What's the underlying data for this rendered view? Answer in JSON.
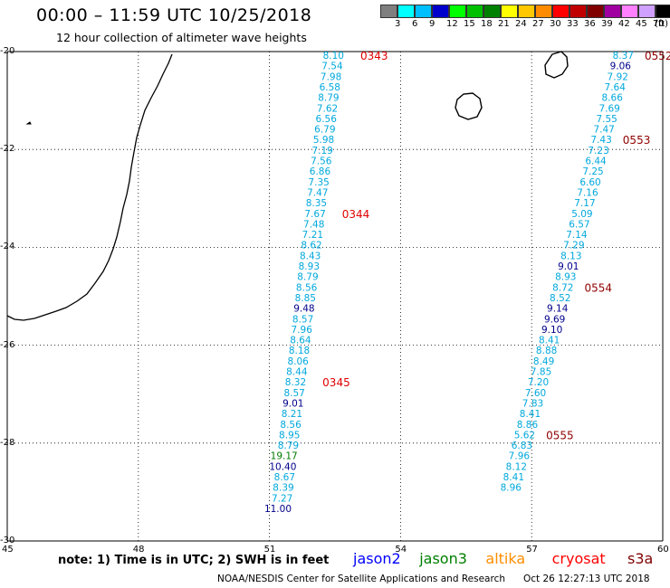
{
  "header": {
    "title": "00:00 – 11:59 UTC 10/25/2018",
    "subtitle": "12 hour collection of altimeter wave heights"
  },
  "color_scale": {
    "unit": "(ft)",
    "labels": [
      "3",
      "6",
      "9",
      "12",
      "15",
      "18",
      "21",
      "24",
      "27",
      "30",
      "33",
      "36",
      "39",
      "42",
      "45",
      "70"
    ],
    "colors": [
      "#7f7f7f",
      "#00ffff",
      "#00bfff",
      "#0000cd",
      "#00ff00",
      "#00c000",
      "#008000",
      "#ffff00",
      "#ffc800",
      "#ff8c00",
      "#ff0000",
      "#c00000",
      "#800000",
      "#a000a0",
      "#ff80ff",
      "#d0a0ff",
      "#000000"
    ]
  },
  "map": {
    "lat_labels": [
      "-20",
      "-22",
      "-24",
      "-26",
      "-28",
      "-30"
    ],
    "lon_labels": [
      "45",
      "48",
      "51",
      "54",
      "57",
      "60"
    ],
    "track_colors": {
      "cyan": "#00a8dc",
      "navy": "#00008b",
      "green": "#007a00",
      "red_pass": "#e00000",
      "dark_pass": "#900000"
    },
    "tracks": [
      {
        "values": [
          {
            "v": "8.10",
            "c": "cyan"
          },
          {
            "v": "7.54",
            "c": "cyan"
          },
          {
            "v": "7.98",
            "c": "cyan"
          },
          {
            "v": "6.58",
            "c": "cyan"
          },
          {
            "v": "8.79",
            "c": "cyan"
          },
          {
            "v": "7.62",
            "c": "cyan"
          },
          {
            "v": "6.56",
            "c": "cyan"
          },
          {
            "v": "6.79",
            "c": "cyan"
          },
          {
            "v": "5.98",
            "c": "cyan"
          },
          {
            "v": "7.19",
            "c": "cyan"
          },
          {
            "v": "7.56",
            "c": "cyan"
          },
          {
            "v": "6.86",
            "c": "cyan"
          },
          {
            "v": "7.35",
            "c": "cyan"
          },
          {
            "v": "7.47",
            "c": "cyan"
          },
          {
            "v": "8.35",
            "c": "cyan"
          },
          {
            "v": "7.67",
            "c": "cyan"
          },
          {
            "v": "7.48",
            "c": "cyan"
          },
          {
            "v": "7.21",
            "c": "cyan"
          },
          {
            "v": "8.62",
            "c": "cyan"
          },
          {
            "v": "8.43",
            "c": "cyan"
          },
          {
            "v": "8.93",
            "c": "cyan"
          },
          {
            "v": "8.79",
            "c": "cyan"
          },
          {
            "v": "8.56",
            "c": "cyan"
          },
          {
            "v": "8.85",
            "c": "cyan"
          },
          {
            "v": "9.48",
            "c": "navy"
          },
          {
            "v": "8.57",
            "c": "cyan"
          },
          {
            "v": "7.96",
            "c": "cyan"
          },
          {
            "v": "8.64",
            "c": "cyan"
          },
          {
            "v": "8.18",
            "c": "cyan"
          },
          {
            "v": "8.06",
            "c": "cyan"
          },
          {
            "v": "8.44",
            "c": "cyan"
          },
          {
            "v": "8.32",
            "c": "cyan"
          },
          {
            "v": "8.57",
            "c": "cyan"
          },
          {
            "v": "9.01",
            "c": "navy"
          },
          {
            "v": "8.21",
            "c": "cyan"
          },
          {
            "v": "8.56",
            "c": "cyan"
          },
          {
            "v": "8.95",
            "c": "cyan"
          },
          {
            "v": "8.79",
            "c": "cyan"
          },
          {
            "v": "19.17",
            "c": "green"
          },
          {
            "v": "10.40",
            "c": "navy"
          },
          {
            "v": "8.67",
            "c": "cyan"
          },
          {
            "v": "8.39",
            "c": "cyan"
          },
          {
            "v": "7.27",
            "c": "cyan"
          },
          {
            "v": "11.00",
            "c": "navy"
          }
        ],
        "times": [
          {
            "t": "0343",
            "c": "red_pass",
            "i": 0
          },
          {
            "t": "0344",
            "c": "red_pass",
            "i": 15
          },
          {
            "t": "0345",
            "c": "red_pass",
            "i": 31
          }
        ]
      },
      {
        "values": [
          {
            "v": "8.37",
            "c": "cyan"
          },
          {
            "v": "9.06",
            "c": "navy"
          },
          {
            "v": "7.92",
            "c": "cyan"
          },
          {
            "v": "7.64",
            "c": "cyan"
          },
          {
            "v": "8.66",
            "c": "cyan"
          },
          {
            "v": "7.69",
            "c": "cyan"
          },
          {
            "v": "7.55",
            "c": "cyan"
          },
          {
            "v": "7.47",
            "c": "cyan"
          },
          {
            "v": "7.43",
            "c": "cyan"
          },
          {
            "v": "7.23",
            "c": "cyan"
          },
          {
            "v": "6.44",
            "c": "cyan"
          },
          {
            "v": "7.25",
            "c": "cyan"
          },
          {
            "v": "6.60",
            "c": "cyan"
          },
          {
            "v": "7.16",
            "c": "cyan"
          },
          {
            "v": "7.17",
            "c": "cyan"
          },
          {
            "v": "5.09",
            "c": "cyan"
          },
          {
            "v": "6.57",
            "c": "cyan"
          },
          {
            "v": "7.14",
            "c": "cyan"
          },
          {
            "v": "7.29",
            "c": "cyan"
          },
          {
            "v": "8.13",
            "c": "cyan"
          },
          {
            "v": "9.01",
            "c": "navy"
          },
          {
            "v": "8.93",
            "c": "cyan"
          },
          {
            "v": "8.72",
            "c": "cyan"
          },
          {
            "v": "8.52",
            "c": "cyan"
          },
          {
            "v": "9.14",
            "c": "navy"
          },
          {
            "v": "9.69",
            "c": "navy"
          },
          {
            "v": "9.10",
            "c": "navy"
          },
          {
            "v": "8.41",
            "c": "cyan"
          },
          {
            "v": "8.88",
            "c": "cyan"
          },
          {
            "v": "8.49",
            "c": "cyan"
          },
          {
            "v": "7.85",
            "c": "cyan"
          },
          {
            "v": "7.20",
            "c": "cyan"
          },
          {
            "v": "7.60",
            "c": "cyan"
          },
          {
            "v": "7.83",
            "c": "cyan"
          },
          {
            "v": "8.41",
            "c": "cyan"
          },
          {
            "v": "8.86",
            "c": "cyan"
          },
          {
            "v": "5.62",
            "c": "cyan"
          },
          {
            "v": "6.83",
            "c": "cyan"
          },
          {
            "v": "7.96",
            "c": "cyan"
          },
          {
            "v": "8.12",
            "c": "cyan"
          },
          {
            "v": "8.41",
            "c": "cyan"
          },
          {
            "v": "8.96",
            "c": "cyan"
          }
        ],
        "times": [
          {
            "t": "0552",
            "c": "dark_pass",
            "i": 0
          },
          {
            "t": "0553",
            "c": "dark_pass",
            "i": 8
          },
          {
            "t": "0554",
            "c": "dark_pass",
            "i": 22
          },
          {
            "t": "0555",
            "c": "dark_pass",
            "i": 36
          }
        ]
      }
    ]
  },
  "note": "note:  1) Time is in UTC;  2) SWH is in feet",
  "legend": [
    {
      "name": "jason2",
      "color": "#0000ff"
    },
    {
      "name": "jason3",
      "color": "#008000"
    },
    {
      "name": "altika",
      "color": "#ff8c00"
    },
    {
      "name": "cryosat",
      "color": "#ff0000"
    },
    {
      "name": "s3a",
      "color": "#800000"
    }
  ],
  "footer": {
    "credit": "NOAA/NESDIS Center for Satellite Applications and Research",
    "timestamp": "Oct 26 12:27:13 UTC 2018"
  }
}
